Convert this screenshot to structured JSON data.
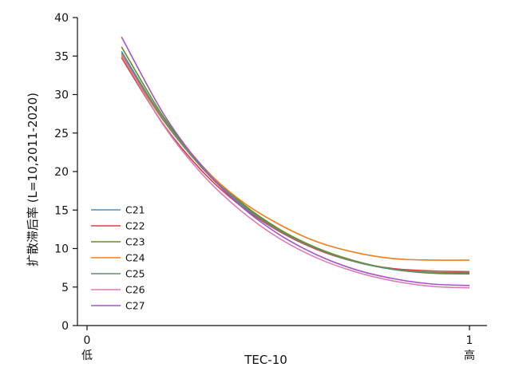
{
  "chart_data": {
    "type": "line",
    "title": "",
    "xlabel": "TEC-10",
    "ylabel": "扩散滞后率 (L=10,2011-2020)",
    "xlim": [
      0,
      1
    ],
    "ylim": [
      0,
      40
    ],
    "yticks": [
      0,
      5,
      10,
      15,
      20,
      25,
      30,
      35,
      40
    ],
    "xticks": [
      {
        "value": 0,
        "label": "0",
        "sublabel": "低"
      },
      {
        "value": 1,
        "label": "1",
        "sublabel": "高"
      }
    ],
    "legend_position": "lower-left",
    "grid": false,
    "x": [
      0.09,
      0.2,
      0.3,
      0.4,
      0.5,
      0.6,
      0.7,
      0.8,
      0.9,
      1.0
    ],
    "series": [
      {
        "name": "C21",
        "color": "#4a90b8",
        "values": [
          35.6,
          26.8,
          20.6,
          15.9,
          12.5,
          10.0,
          8.3,
          7.3,
          6.9,
          6.8
        ]
      },
      {
        "name": "C22",
        "color": "#d94040",
        "values": [
          34.8,
          26.1,
          20.1,
          15.6,
          12.3,
          9.9,
          8.3,
          7.4,
          7.1,
          7.0
        ]
      },
      {
        "name": "C23",
        "color": "#6f8a1e",
        "values": [
          36.2,
          27.1,
          20.8,
          16.1,
          12.6,
          10.1,
          8.4,
          7.3,
          6.8,
          6.7
        ]
      },
      {
        "name": "C24",
        "color": "#f07d1a",
        "values": [
          35.0,
          26.6,
          20.7,
          16.3,
          13.2,
          10.9,
          9.5,
          8.7,
          8.5,
          8.5
        ]
      },
      {
        "name": "C25",
        "color": "#5f8f6e",
        "values": [
          35.4,
          26.7,
          20.5,
          15.8,
          12.4,
          10.0,
          8.3,
          7.3,
          6.9,
          6.9
        ]
      },
      {
        "name": "C26",
        "color": "#e07ab8",
        "values": [
          35.2,
          26.0,
          19.7,
          15.0,
          11.4,
          8.8,
          7.0,
          5.8,
          5.1,
          4.9
        ]
      },
      {
        "name": "C27",
        "color": "#a056c8",
        "values": [
          37.5,
          27.5,
          20.7,
          15.6,
          11.9,
          9.2,
          7.3,
          6.1,
          5.4,
          5.2
        ]
      }
    ]
  }
}
